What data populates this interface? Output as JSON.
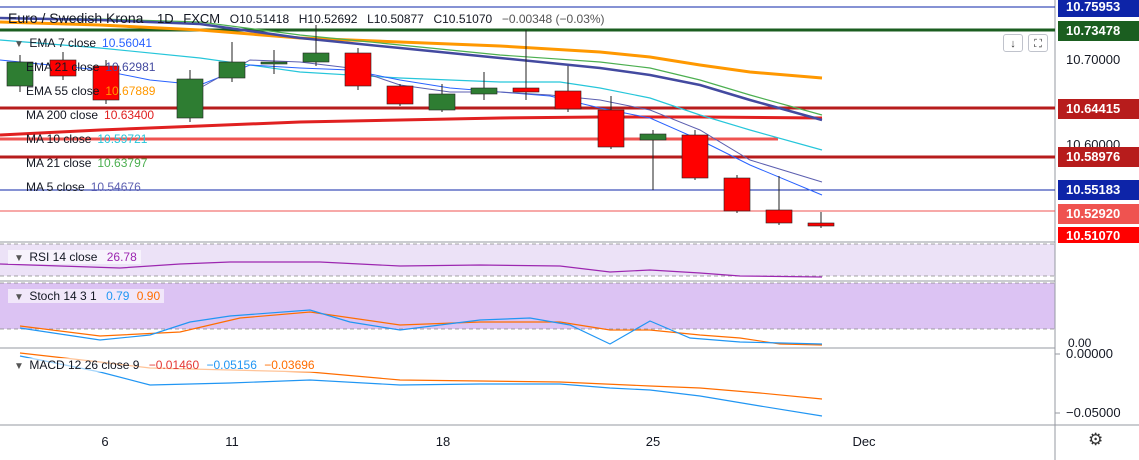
{
  "header": {
    "symbol_name": "Euro / Swedish Krona",
    "interval": "1D",
    "source": "FXCM",
    "open": "O10.51418",
    "high": "H10.52692",
    "low": "L10.50877",
    "close": "C10.51070",
    "change": "−0.00348 (−0.03%)"
  },
  "indicators": [
    {
      "label": "EMA 7 close",
      "value": "10.56041",
      "color": "#2962ff"
    },
    {
      "label": "EMA 21 close",
      "value": "10.62981",
      "color": "#434aa0"
    },
    {
      "label": "EMA 55 close",
      "value": "10.67889",
      "color": "#ff9800"
    },
    {
      "label": "MA 200 close",
      "value": "10.63400",
      "color": "#e02020"
    },
    {
      "label": "MA 10 close",
      "value": "10.59721",
      "color": "#26c6da"
    },
    {
      "label": "MA 21 close",
      "value": "10.63797",
      "color": "#4caf50"
    },
    {
      "label": "MA 5 close",
      "value": "10.54676",
      "color": "#5c5fb0"
    }
  ],
  "rsi": {
    "label": "RSI 14 close",
    "value": "26.78",
    "color": "#9c27b0"
  },
  "stoch": {
    "label": "Stoch 14 3 1",
    "k": "0.79",
    "d": "0.90",
    "k_color": "#2196f3",
    "d_color": "#ff6d00"
  },
  "macd": {
    "label": "MACD 12 26 close 9",
    "hist": "−0.01460",
    "macd": "−0.05156",
    "signal": "−0.03696",
    "macd_color": "#2196f3",
    "signal_color": "#ff6d00"
  },
  "price_axis": {
    "labels": [
      "10.70000",
      "10.60000"
    ],
    "tags": [
      {
        "text": "10.75953",
        "color": "#0d24a8"
      },
      {
        "text": "10.73478",
        "color": "#1b5e20"
      },
      {
        "text": "10.64415",
        "color": "#b71c1c"
      },
      {
        "text": "10.58976",
        "color": "#b71c1c"
      },
      {
        "text": "10.55183",
        "color": "#0d24a8"
      },
      {
        "text": "10.52920",
        "color": "#ef5350"
      },
      {
        "text": "10.51070",
        "color": "#ff0000"
      }
    ]
  },
  "macd_axis": {
    "labels": [
      "0.00000",
      "−0.05000"
    ]
  },
  "date_axis": {
    "labels": [
      "6",
      "11",
      "18",
      "25",
      "Dec"
    ]
  },
  "toolbar": {
    "scale_btn": "↓",
    "fullscreen_btn": "⛶",
    "settings_icon": "⚙"
  },
  "colors": {
    "bull": "#2e7d32",
    "bear": "#ff0000",
    "rsi_band": "#e8dcf5",
    "stoch_band": "#dcc3f3"
  }
}
